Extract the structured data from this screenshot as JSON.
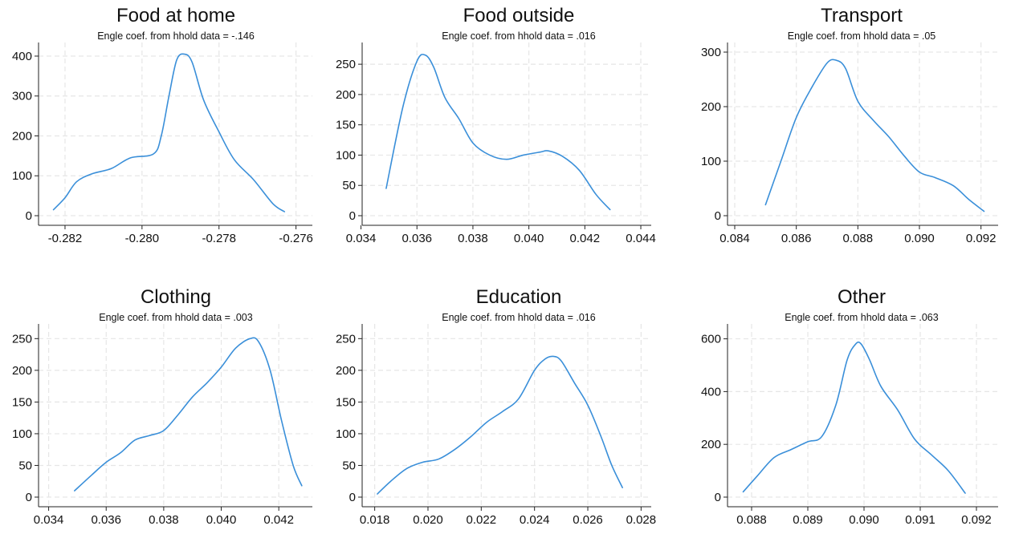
{
  "chart_data": [
    {
      "type": "line",
      "title": "Food at home",
      "subtitle": "Engle coef. from hhold data = -.146",
      "xlim": [
        -0.2825,
        -0.2757
      ],
      "ylim": [
        0,
        410
      ],
      "xticks": [
        -0.282,
        -0.28,
        -0.278,
        -0.276
      ],
      "xtick_labels": [
        "-0.282",
        "-0.280",
        "-0.278",
        "-0.276"
      ],
      "yticks": [
        0,
        100,
        200,
        300,
        400
      ],
      "ytick_labels": [
        "0",
        "100",
        "200",
        "300",
        "400"
      ],
      "grid": true,
      "color": "#3a8fd9",
      "series": [
        {
          "x": [
            -0.2823,
            -0.282,
            -0.2817,
            -0.2813,
            -0.2808,
            -0.2803,
            -0.2797,
            -0.2795,
            -0.2793,
            -0.2791,
            -0.2789,
            -0.2787,
            -0.2784,
            -0.278,
            -0.2776,
            -0.2771,
            -0.2766,
            -0.2763
          ],
          "y": [
            15,
            45,
            85,
            105,
            118,
            145,
            155,
            200,
            300,
            390,
            405,
            385,
            290,
            210,
            140,
            90,
            30,
            10
          ]
        }
      ]
    },
    {
      "type": "line",
      "title": "Food outside",
      "subtitle": "Engle coef. from hhold data = .016",
      "xlim": [
        0.0343,
        0.0442
      ],
      "ylim": [
        0,
        270
      ],
      "xticks": [
        0.034,
        0.036,
        0.038,
        0.04,
        0.042,
        0.044
      ],
      "xtick_labels": [
        "0.034",
        "0.036",
        "0.038",
        "0.040",
        "0.042",
        "0.044"
      ],
      "yticks": [
        0,
        50,
        100,
        150,
        200,
        250
      ],
      "ytick_labels": [
        "0",
        "50",
        "100",
        "150",
        "200",
        "250"
      ],
      "grid": true,
      "color": "#3a8fd9",
      "series": [
        {
          "x": [
            0.0349,
            0.0355,
            0.036,
            0.0363,
            0.0366,
            0.037,
            0.0375,
            0.038,
            0.0386,
            0.0392,
            0.0398,
            0.0404,
            0.0407,
            0.0412,
            0.0418,
            0.0424,
            0.0429
          ],
          "y": [
            45,
            180,
            255,
            265,
            245,
            195,
            160,
            120,
            100,
            93,
            100,
            105,
            107,
            98,
            75,
            35,
            10
          ]
        }
      ]
    },
    {
      "type": "line",
      "title": "Transport",
      "subtitle": "Engle coef. from hhold data = .05",
      "xlim": [
        0.084,
        0.0924
      ],
      "ylim": [
        0,
        300
      ],
      "xticks": [
        0.084,
        0.086,
        0.088,
        0.09,
        0.092
      ],
      "xtick_labels": [
        "0.084",
        "0.086",
        "0.088",
        "0.090",
        "0.092"
      ],
      "yticks": [
        0,
        100,
        200,
        300
      ],
      "ytick_labels": [
        "0",
        "100",
        "200",
        "300"
      ],
      "grid": true,
      "color": "#3a8fd9",
      "series": [
        {
          "x": [
            0.085,
            0.0855,
            0.086,
            0.0865,
            0.087,
            0.0873,
            0.0876,
            0.088,
            0.0885,
            0.089,
            0.0895,
            0.09,
            0.0905,
            0.0911,
            0.0916,
            0.0921
          ],
          "y": [
            20,
            100,
            180,
            235,
            280,
            285,
            270,
            210,
            175,
            145,
            110,
            80,
            70,
            55,
            30,
            8
          ]
        }
      ]
    },
    {
      "type": "line",
      "title": "Clothing",
      "subtitle": "Engle coef. from hhold data = .003",
      "xlim": [
        0.0339,
        0.043
      ],
      "ylim": [
        0,
        258
      ],
      "xticks": [
        0.034,
        0.036,
        0.038,
        0.04,
        0.042
      ],
      "xtick_labels": [
        "0.034",
        "0.036",
        "0.038",
        "0.040",
        "0.042"
      ],
      "yticks": [
        0,
        50,
        100,
        150,
        200,
        250
      ],
      "ytick_labels": [
        "0",
        "50",
        "100",
        "150",
        "200",
        "250"
      ],
      "grid": true,
      "color": "#3a8fd9",
      "series": [
        {
          "x": [
            0.0349,
            0.0355,
            0.036,
            0.0365,
            0.037,
            0.0375,
            0.038,
            0.0385,
            0.039,
            0.0395,
            0.04,
            0.0405,
            0.041,
            0.0413,
            0.0417,
            0.0421,
            0.0425,
            0.0428
          ],
          "y": [
            10,
            35,
            55,
            70,
            90,
            97,
            105,
            130,
            158,
            180,
            205,
            235,
            250,
            245,
            200,
            120,
            50,
            18
          ]
        }
      ]
    },
    {
      "type": "line",
      "title": "Education",
      "subtitle": "Engle coef. from hhold data = .016",
      "xlim": [
        0.0178,
        0.0282
      ],
      "ylim": [
        0,
        258
      ],
      "xticks": [
        0.018,
        0.02,
        0.022,
        0.024,
        0.026,
        0.028
      ],
      "xtick_labels": [
        "0.018",
        "0.020",
        "0.022",
        "0.024",
        "0.026",
        "0.028"
      ],
      "yticks": [
        0,
        50,
        100,
        150,
        200,
        250
      ],
      "ytick_labels": [
        "0",
        "50",
        "100",
        "150",
        "200",
        "250"
      ],
      "grid": true,
      "color": "#3a8fd9",
      "series": [
        {
          "x": [
            0.0181,
            0.0186,
            0.0192,
            0.0198,
            0.0204,
            0.021,
            0.0216,
            0.0222,
            0.0228,
            0.0234,
            0.024,
            0.0244,
            0.0247,
            0.025,
            0.0255,
            0.026,
            0.0265,
            0.0269,
            0.0273
          ],
          "y": [
            5,
            25,
            45,
            55,
            60,
            75,
            95,
            118,
            135,
            155,
            200,
            218,
            222,
            215,
            180,
            145,
            95,
            50,
            15
          ]
        }
      ]
    },
    {
      "type": "line",
      "title": "Other",
      "subtitle": "Engle coef. from hhold data = .063",
      "xlim": [
        0.0877,
        0.0923
      ],
      "ylim": [
        0,
        620
      ],
      "xticks": [
        0.088,
        0.089,
        0.09,
        0.091,
        0.092
      ],
      "xtick_labels": [
        "0.088",
        "0.089",
        "0.090",
        "0.091",
        "0.092"
      ],
      "yticks": [
        0,
        200,
        400,
        600
      ],
      "ytick_labels": [
        "0",
        "200",
        "400",
        "600"
      ],
      "grid": true,
      "color": "#3a8fd9",
      "series": [
        {
          "x": [
            0.08785,
            0.0881,
            0.0884,
            0.0887,
            0.089,
            0.08925,
            0.0895,
            0.0897,
            0.08985,
            0.08995,
            0.0901,
            0.0903,
            0.0906,
            0.0909,
            0.0912,
            0.0915,
            0.0918
          ],
          "y": [
            20,
            80,
            150,
            180,
            210,
            230,
            350,
            520,
            580,
            580,
            520,
            420,
            330,
            220,
            160,
            100,
            15
          ]
        }
      ]
    }
  ]
}
